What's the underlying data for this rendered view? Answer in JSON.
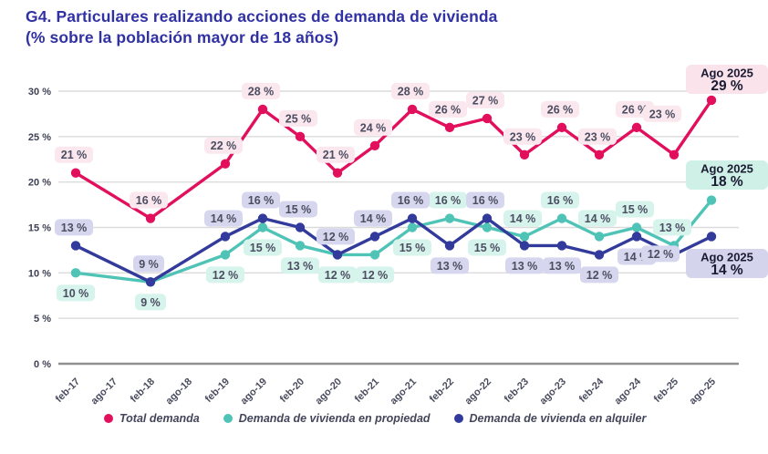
{
  "title": {
    "line1": "G4. Particulares realizando acciones de demanda de vivienda",
    "line2": "(% sobre la población mayor de 18 años)",
    "color": "#3031a3"
  },
  "chart_data": {
    "type": "line",
    "title": "G4. Particulares realizando acciones de demanda de vivienda (% sobre la población mayor de 18 años)",
    "categories": [
      "feb-17",
      "ago-17",
      "feb-18",
      "ago-18",
      "feb-19",
      "ago-19",
      "feb-20",
      "ago-20",
      "feb-21",
      "ago-21",
      "feb-22",
      "ago-22",
      "feb-23",
      "ago-23",
      "feb-24",
      "ago-24",
      "feb-25",
      "ago-25"
    ],
    "ylim": [
      0,
      30
    ],
    "ytick_labels": [
      "0 %",
      "5 %",
      "10 %",
      "15 %",
      "20 %",
      "25 %",
      "30 %"
    ],
    "grid": "horizontal-only",
    "legend_position": "bottom",
    "axis_style": {
      "gridline_color": "#dbdbdb",
      "zero_line_color": "#909090",
      "ytick_color": "#3e4055",
      "xtick_color": "#4a4c5e"
    },
    "label_text_color": "#4b4d60",
    "annotation_text_color": "#1b1b33",
    "series": [
      {
        "name": "Total demanda",
        "color": "#e2105c",
        "label_bg": "#fbe7ee",
        "x": [
          "feb-17",
          "feb-18",
          "feb-19",
          "ago-19",
          "feb-20",
          "ago-20",
          "feb-21",
          "ago-21",
          "feb-22",
          "ago-22",
          "feb-23",
          "ago-23",
          "feb-24",
          "ago-24",
          "feb-25",
          "ago-25"
        ],
        "values": [
          21,
          16,
          22,
          28,
          25,
          21,
          24,
          28,
          26,
          27,
          23,
          26,
          23,
          26,
          23,
          29
        ],
        "labels": [
          "21 %",
          "16 %",
          "22 %",
          "28 %",
          "25 %",
          "21 %",
          "24 %",
          "28 %",
          "26 %",
          "27 %",
          "23 %",
          "26 %",
          "23 %",
          "26 %",
          "23 %",
          "29 %"
        ],
        "label_placements": [
          "above",
          "above",
          "above",
          "above",
          "above",
          "above",
          "above",
          "above",
          "above",
          "above",
          "above",
          "above",
          "above",
          "above",
          "high",
          null
        ],
        "annotation": {
          "label": "Ago 2025",
          "value": "29 %",
          "bg": "#fae3ea"
        }
      },
      {
        "name": "Demanda de vivienda en propiedad",
        "color": "#4fc4b6",
        "label_bg": "#d6f3ec",
        "x": [
          "feb-17",
          "feb-18",
          "feb-19",
          "ago-19",
          "feb-20",
          "ago-20",
          "feb-21",
          "ago-21",
          "feb-22",
          "ago-22",
          "feb-23",
          "ago-23",
          "feb-24",
          "ago-24",
          "feb-25",
          "ago-25"
        ],
        "values": [
          10,
          9,
          12,
          15,
          13,
          12,
          12,
          15,
          16,
          15,
          14,
          16,
          14,
          15,
          13,
          18
        ],
        "labels": [
          "10 %",
          "9 %",
          "12 %",
          "15 %",
          "13 %",
          "12 %",
          "12 %",
          "15 %",
          "16 %",
          "15 %",
          "14 %",
          "16 %",
          "14 %",
          "15 %",
          "13 %",
          "18 %"
        ],
        "label_placements": [
          "below",
          "below",
          "below",
          "below",
          "below",
          "below",
          "below",
          "below",
          "above",
          "below",
          "above",
          "above",
          "above",
          "above",
          "above",
          null
        ],
        "annotation": {
          "label": "Ago 2025",
          "value": "18 %",
          "bg": "#cff0e7"
        }
      },
      {
        "name": "Demanda de vivienda en alquiler",
        "color": "#323a9b",
        "label_bg": "#d6d7ee",
        "x": [
          "feb-17",
          "feb-18",
          "feb-19",
          "ago-19",
          "feb-20",
          "ago-20",
          "feb-21",
          "ago-21",
          "feb-22",
          "ago-22",
          "feb-23",
          "ago-23",
          "feb-24",
          "ago-24",
          "feb-25",
          "ago-25"
        ],
        "values": [
          13,
          9,
          14,
          16,
          15,
          12,
          14,
          16,
          13,
          16,
          13,
          13,
          12,
          14,
          12,
          14
        ],
        "labels": [
          "13 %",
          "9 %",
          "14 %",
          "16 %",
          "15 %",
          "12 %",
          "14 %",
          "16 %",
          "13 %",
          "16 %",
          "13 %",
          "13 %",
          "12 %",
          "14 %",
          "12 %",
          "14 %"
        ],
        "label_placements": [
          "above",
          "above",
          "above",
          "above",
          "above",
          "above",
          "above",
          "above",
          "below",
          "above",
          "below",
          "below",
          "below",
          "below",
          "left",
          null
        ],
        "annotation": {
          "label": "Ago 2025",
          "value": "14 %",
          "bg": "#d4d5ec"
        }
      }
    ]
  }
}
